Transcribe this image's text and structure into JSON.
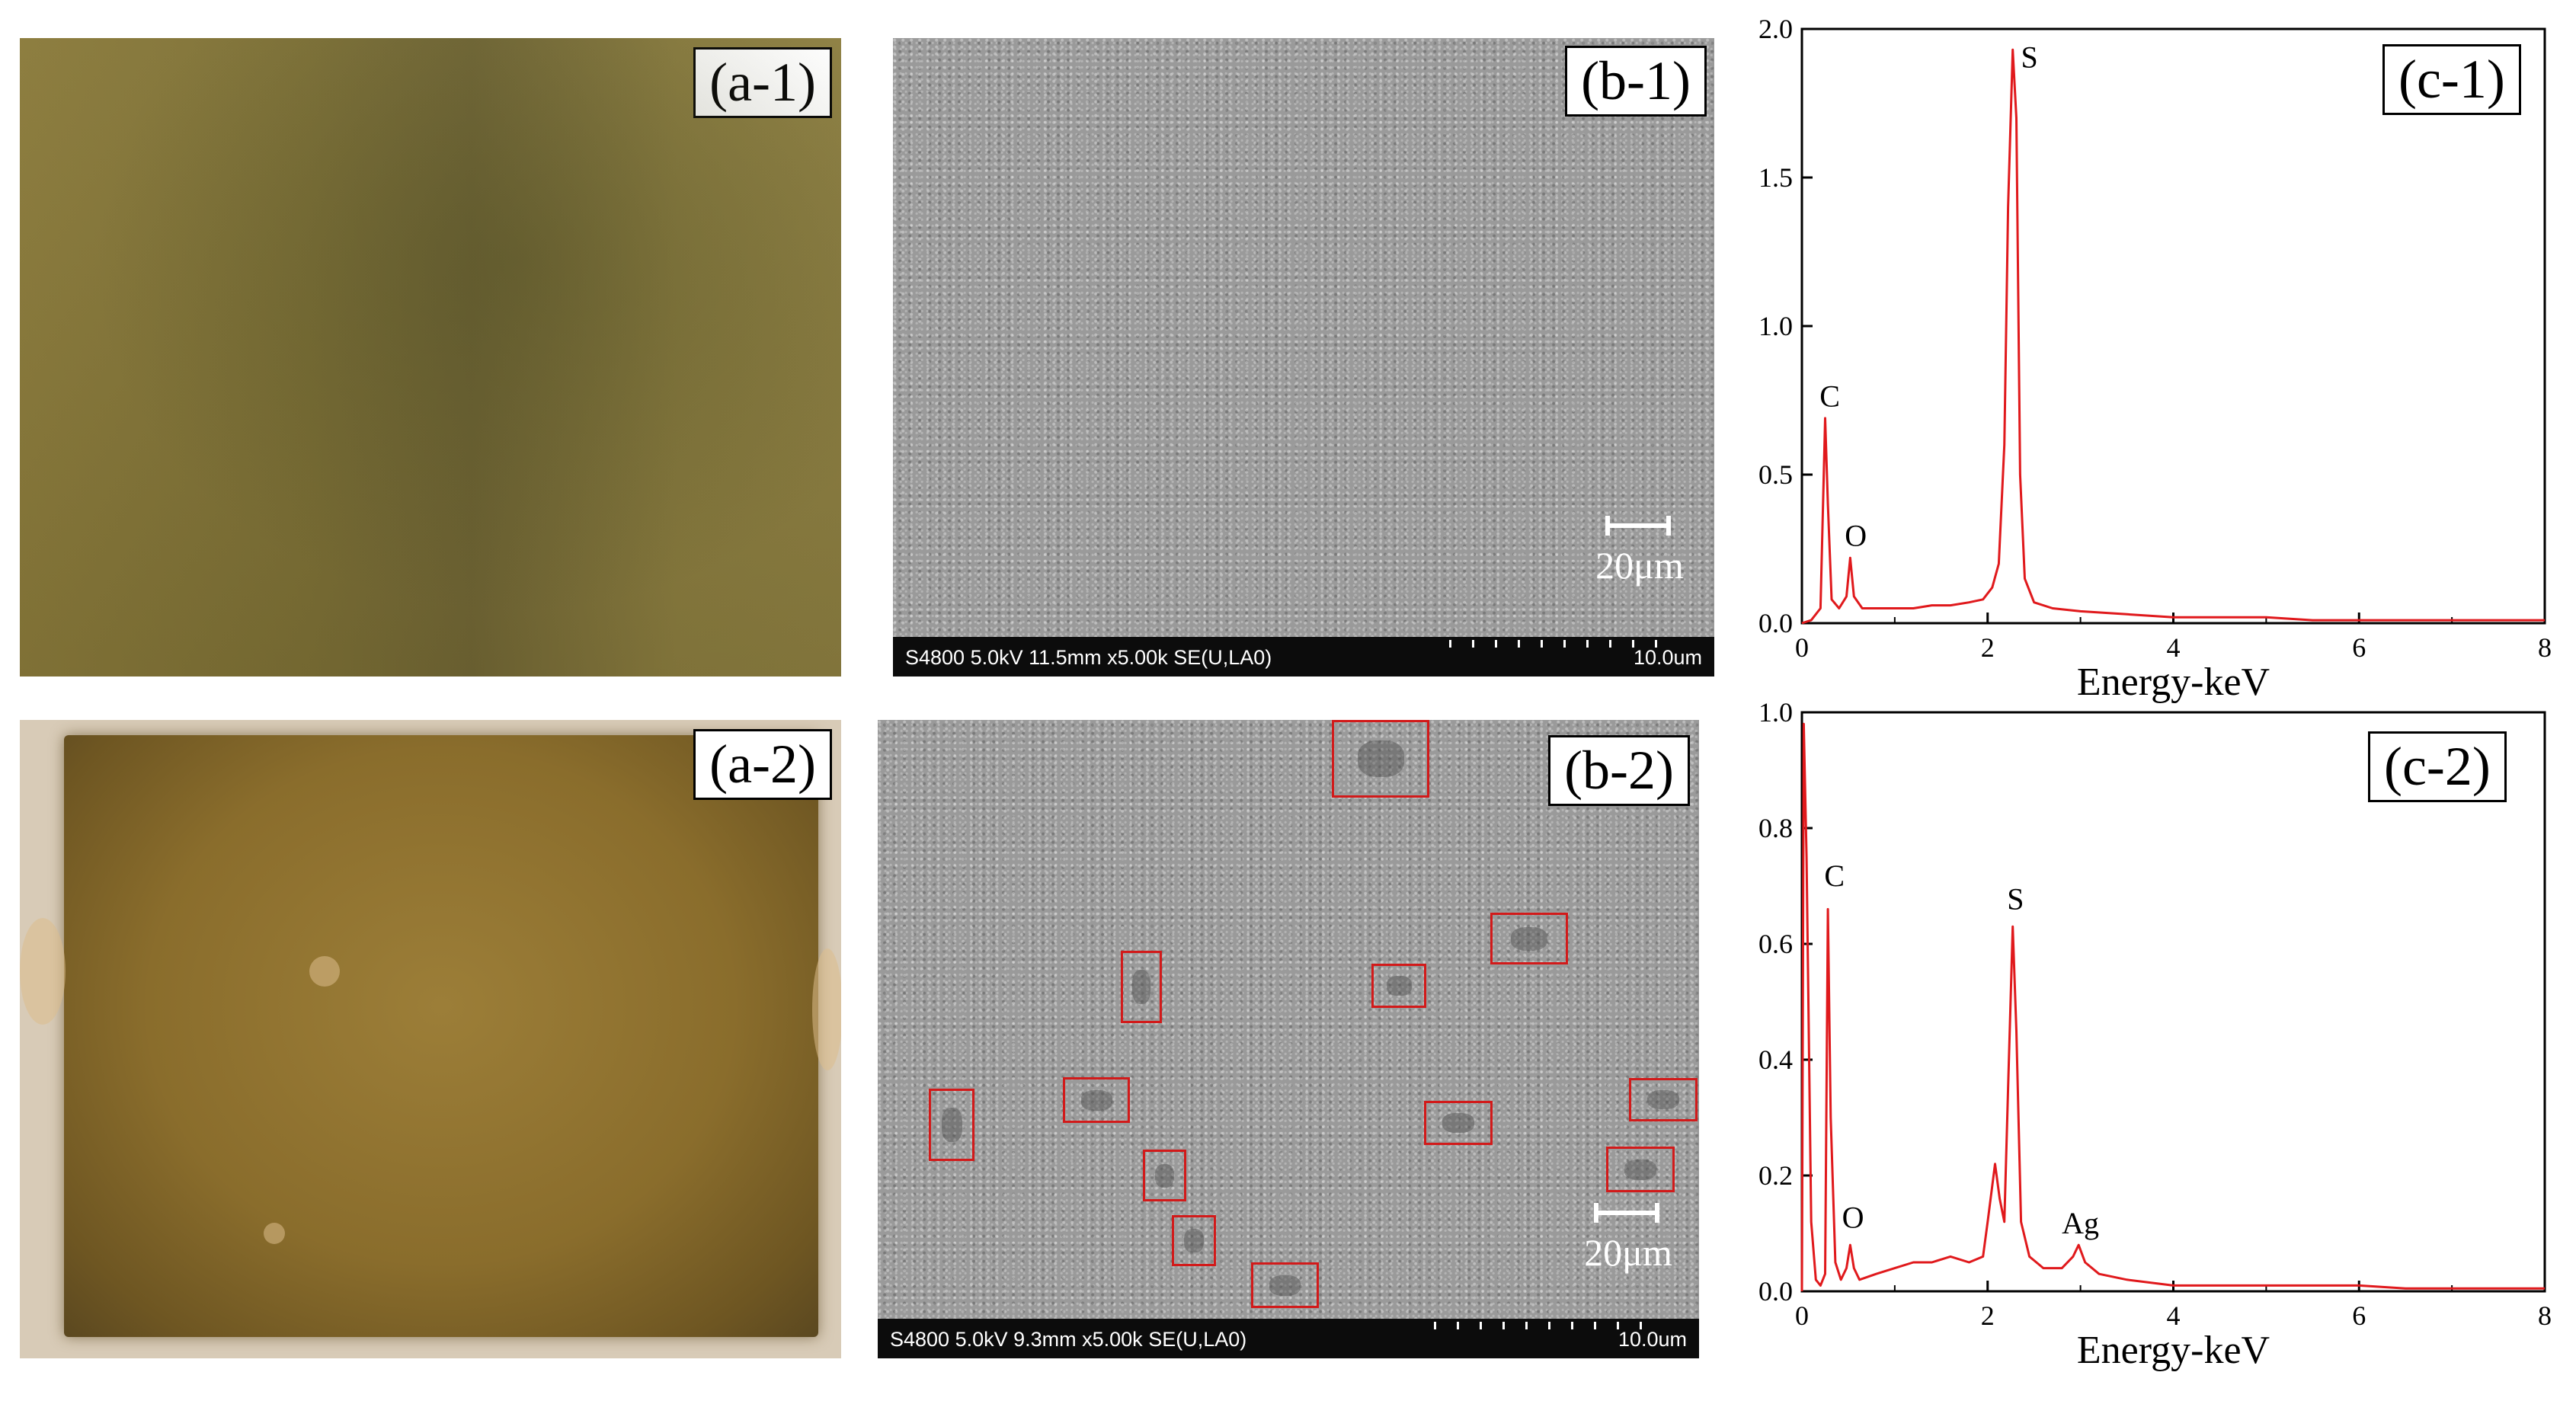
{
  "panels": {
    "a1": {
      "label": "(a-1)"
    },
    "a2": {
      "label": "(a-2)"
    },
    "b1": {
      "label": "(b-1)",
      "scale": "20μm",
      "info": "S4800 5.0kV 11.5mm x5.00k SE(U,LA0)",
      "fov": "10.0um"
    },
    "b2": {
      "label": "(b-2)",
      "scale": "20μm",
      "info": "S4800 5.0kV 9.3mm x5.00k SE(U,LA0)",
      "fov": "10.0um",
      "marked_regions": 12
    },
    "c1": {
      "label": "(c-1)"
    },
    "c2": {
      "label": "(c-2)"
    }
  },
  "chart_data": [
    {
      "type": "line",
      "panel": "(c-1)",
      "xlabel": "Energy-keV",
      "ylabel": "",
      "xlim": [
        0,
        8
      ],
      "ylim": [
        0,
        2.0
      ],
      "xticks": [
        "0",
        "2",
        "4",
        "6",
        "8"
      ],
      "yticks": [
        "0.0",
        "0.5",
        "1.0",
        "1.5",
        "2.0"
      ],
      "color": "#e0191c",
      "series": [
        {
          "x": [
            0,
            0.1,
            0.2,
            0.25,
            0.28,
            0.32,
            0.4,
            0.48,
            0.52,
            0.56,
            0.65,
            0.8,
            1.0,
            1.2,
            1.4,
            1.6,
            1.8,
            1.95,
            2.05,
            2.12,
            2.18,
            2.22,
            2.27,
            2.31,
            2.35,
            2.4,
            2.5,
            2.7,
            3.0,
            3.5,
            4.0,
            4.5,
            5.0,
            5.5,
            6.0,
            6.5,
            7.0,
            7.5,
            8.0
          ],
          "y": [
            0.0,
            0.01,
            0.05,
            0.69,
            0.4,
            0.08,
            0.05,
            0.09,
            0.22,
            0.09,
            0.05,
            0.05,
            0.05,
            0.05,
            0.06,
            0.06,
            0.07,
            0.08,
            0.12,
            0.2,
            0.6,
            1.4,
            1.93,
            1.7,
            0.5,
            0.15,
            0.07,
            0.05,
            0.04,
            0.03,
            0.02,
            0.02,
            0.02,
            0.01,
            0.01,
            0.01,
            0.01,
            0.01,
            0.01
          ]
        }
      ],
      "annotations": [
        {
          "text": "S",
          "x": 2.45,
          "y": 1.87
        },
        {
          "text": "C",
          "x": 0.3,
          "y": 0.73
        },
        {
          "text": "O",
          "x": 0.58,
          "y": 0.26
        }
      ]
    },
    {
      "type": "line",
      "panel": "(c-2)",
      "xlabel": "Energy-keV",
      "ylabel": "",
      "xlim": [
        0,
        8
      ],
      "ylim": [
        0,
        1.0
      ],
      "xticks": [
        "0",
        "2",
        "4",
        "6",
        "8"
      ],
      "yticks": [
        "0.0",
        "0.2",
        "0.4",
        "0.6",
        "0.8",
        "1.0"
      ],
      "color": "#e0191c",
      "series": [
        {
          "x": [
            0,
            0.02,
            0.05,
            0.1,
            0.15,
            0.2,
            0.25,
            0.28,
            0.31,
            0.36,
            0.42,
            0.48,
            0.52,
            0.56,
            0.62,
            0.8,
            1.0,
            1.2,
            1.4,
            1.6,
            1.8,
            1.95,
            2.0,
            2.08,
            2.13,
            2.18,
            2.22,
            2.27,
            2.31,
            2.36,
            2.45,
            2.6,
            2.8,
            2.92,
            2.98,
            3.05,
            3.2,
            3.5,
            4.0,
            4.5,
            5.0,
            5.5,
            6.0,
            6.5,
            7.0,
            7.5,
            8.0
          ],
          "y": [
            0.0,
            0.98,
            0.75,
            0.12,
            0.02,
            0.01,
            0.03,
            0.66,
            0.3,
            0.05,
            0.02,
            0.04,
            0.08,
            0.04,
            0.02,
            0.03,
            0.04,
            0.05,
            0.05,
            0.06,
            0.05,
            0.06,
            0.12,
            0.22,
            0.16,
            0.12,
            0.35,
            0.63,
            0.45,
            0.12,
            0.06,
            0.04,
            0.04,
            0.06,
            0.08,
            0.05,
            0.03,
            0.02,
            0.01,
            0.01,
            0.01,
            0.01,
            0.01,
            0.005,
            0.005,
            0.005,
            0.005
          ]
        }
      ],
      "annotations": [
        {
          "text": "C",
          "x": 0.35,
          "y": 0.7
        },
        {
          "text": "S",
          "x": 2.3,
          "y": 0.66
        },
        {
          "text": "O",
          "x": 0.55,
          "y": 0.11
        },
        {
          "text": "Ag",
          "x": 3.0,
          "y": 0.1
        }
      ]
    }
  ]
}
